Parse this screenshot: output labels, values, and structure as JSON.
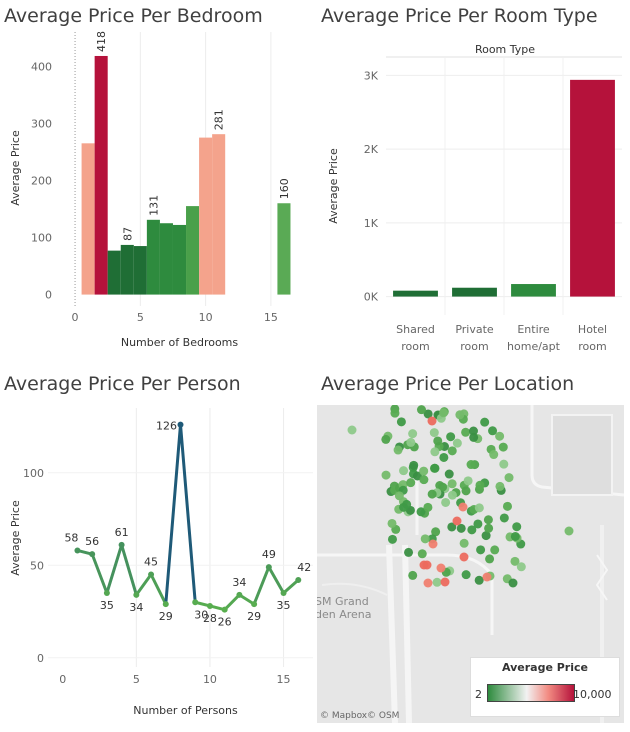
{
  "titles": {
    "bedroom": "Average Price Per Bedroom",
    "room_type": "Average Price Per Room Type",
    "person": "Average Price Per Person",
    "location": "Average Price Per Location"
  },
  "map": {
    "legend_title": "Average Price",
    "legend_min": "2",
    "legend_max": "10,000",
    "label_line1": "SM Grand",
    "label_line2": "den Arena",
    "attribution_mapbox": "© Mapbox",
    "attribution_osm": "© OSM",
    "color_low": "#2e8b3e",
    "color_mid": "#f2f2f2",
    "color_high": "#b5123b"
  },
  "chart_data": [
    {
      "type": "bar",
      "title": "Average Price Per Bedroom",
      "xlabel": "Number of Bedrooms",
      "ylabel": "Average Price",
      "xlim": [
        -1,
        17
      ],
      "ylim": [
        -20,
        460
      ],
      "xticks": [
        "0",
        "5",
        "10",
        "15"
      ],
      "yticks": [
        "0",
        "100",
        "200",
        "300",
        "400"
      ],
      "bars": [
        {
          "x": 1,
          "value": 265,
          "color": "#f4a38c",
          "label": ""
        },
        {
          "x": 2,
          "value": 418,
          "color": "#b5123b",
          "label": "418"
        },
        {
          "x": 3,
          "value": 77,
          "color": "#1f6e35",
          "label": ""
        },
        {
          "x": 4,
          "value": 87,
          "color": "#1f6e35",
          "label": "87"
        },
        {
          "x": 5,
          "value": 85,
          "color": "#1f6e35",
          "label": ""
        },
        {
          "x": 6,
          "value": 131,
          "color": "#2e8b3e",
          "label": "131"
        },
        {
          "x": 7,
          "value": 125,
          "color": "#2e8b3e",
          "label": ""
        },
        {
          "x": 8,
          "value": 122,
          "color": "#2e8b3e",
          "label": ""
        },
        {
          "x": 9,
          "value": 155,
          "color": "#4aa04a",
          "label": ""
        },
        {
          "x": 10,
          "value": 275,
          "color": "#f4a38c",
          "label": ""
        },
        {
          "x": 11,
          "value": 281,
          "color": "#f4a38c",
          "label": "281"
        },
        {
          "x": 16,
          "value": 160,
          "color": "#5aaa55",
          "label": "160"
        }
      ]
    },
    {
      "type": "bar",
      "title": "Average Price Per Room Type",
      "header": "Room Type",
      "ylabel": "Average Price",
      "ylim": [
        -250,
        3250
      ],
      "yticks": [
        "0K",
        "1K",
        "2K",
        "3K"
      ],
      "categories": [
        "Shared room",
        "Private room",
        "Entire home/apt",
        "Hotel room"
      ],
      "category_lines": [
        [
          "Shared",
          "room"
        ],
        [
          "Private",
          "room"
        ],
        [
          "Entire",
          "home/apt"
        ],
        [
          "Hotel",
          "room"
        ]
      ],
      "values": [
        80,
        120,
        170,
        2940
      ],
      "colors": [
        "#1f6e35",
        "#1f6e35",
        "#2e8b3e",
        "#b5123b"
      ]
    },
    {
      "type": "line",
      "title": "Average Price Per Person",
      "xlabel": "Number of Persons",
      "ylabel": "Average Price",
      "xlim": [
        -1,
        17
      ],
      "ylim": [
        -5,
        135
      ],
      "xticks": [
        "0",
        "5",
        "10",
        "15"
      ],
      "yticks": [
        "0",
        "50",
        "100"
      ],
      "x": [
        1,
        2,
        3,
        4,
        5,
        6,
        7,
        8,
        9,
        10,
        11,
        12,
        13,
        14,
        15,
        16
      ],
      "y": [
        58,
        56,
        35,
        61,
        34,
        45,
        29,
        126,
        30,
        28,
        26,
        34,
        29,
        49,
        35,
        42
      ],
      "labels": [
        "58",
        "56",
        "35",
        "61",
        "34",
        "45",
        "29",
        "126",
        "30",
        "28",
        "26",
        "34",
        "29",
        "49",
        "35",
        "42"
      ]
    }
  ]
}
